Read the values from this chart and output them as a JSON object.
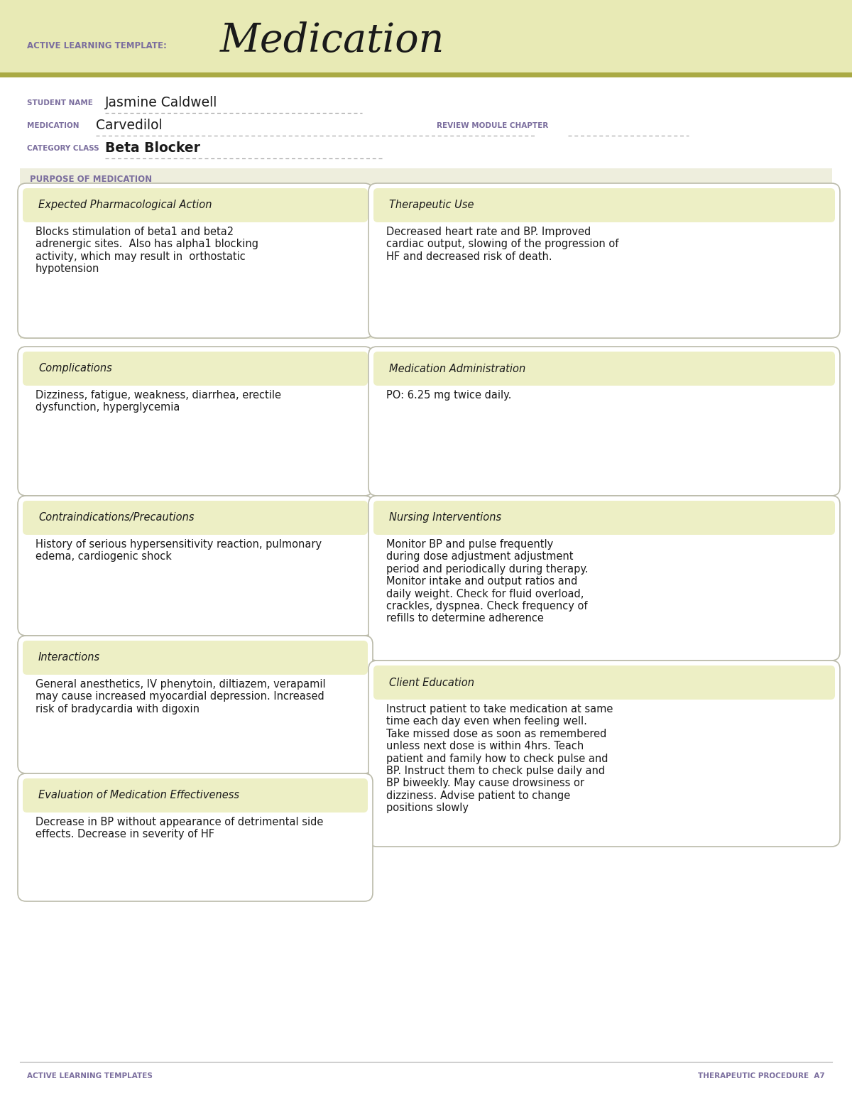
{
  "header_bg": "#E8EAB5",
  "olive_line": "#AAAA44",
  "purple": "#7B6E9E",
  "black": "#1A1A1A",
  "box_bg": "#EDEFC5",
  "box_border": "#BBBBAA",
  "white": "#FFFFFF",
  "light_gray_bg": "#EBEBD8",
  "template_label": "ACTIVE LEARNING TEMPLATE:",
  "template_title": "Medication",
  "student_name": "Jasmine Caldwell",
  "medication": "Carvedilol",
  "review_module": "REVIEW MODULE CHAPTER",
  "category_class": "Beta Blocker",
  "purpose_label": "PURPOSE OF MEDICATION",
  "sections": {
    "expected_pharm_action": {
      "title": "Expected Pharmacological Action",
      "body": "Blocks stimulation of beta1 and beta2\nadrenergic sites.  Also has alpha1 blocking\nactivity, which may result in  orthostatic\nhypotension"
    },
    "therapeutic_use": {
      "title": "Therapeutic Use",
      "body": "Decreased heart rate and BP. Improved\ncardiac output, slowing of the progression of\nHF and decreased risk of death."
    },
    "complications": {
      "title": "Complications",
      "body": "Dizziness, fatigue, weakness, diarrhea, erectile\ndysfunction, hyperglycemia"
    },
    "medication_admin": {
      "title": "Medication Administration",
      "body": "PO: 6.25 mg twice daily."
    },
    "contraindications": {
      "title": "Contraindications/Precautions",
      "body": "History of serious hypersensitivity reaction, pulmonary\nedema, cardiogenic shock"
    },
    "nursing_interventions": {
      "title": "Nursing Interventions",
      "body": "Monitor BP and pulse frequently\nduring dose adjustment adjustment\nperiod and periodically during therapy.\nMonitor intake and output ratios and\ndaily weight. Check for fluid overload,\ncrackles, dyspnea. Check frequency of\nrefills to determine adherence"
    },
    "interactions": {
      "title": "Interactions",
      "body": "General anesthetics, IV phenytoin, diltiazem, verapamil\nmay cause increased myocardial depression. Increased\nrisk of bradycardia with digoxin"
    },
    "client_education": {
      "title": "Client Education",
      "body": "Instruct patient to take medication at same\ntime each day even when feeling well.\nTake missed dose as soon as remembered\nunless next dose is within 4hrs. Teach\npatient and family how to check pulse and\nBP. Instruct them to check pulse daily and\nBP biweekly. May cause drowsiness or\ndizziness. Advise patient to change\npositions slowly"
    },
    "evaluation": {
      "title": "Evaluation of Medication Effectiveness",
      "body": "Decrease in BP without appearance of detrimental side\neffects. Decrease in severity of HF"
    }
  },
  "footer_left": "ACTIVE LEARNING TEMPLATES",
  "footer_right": "THERAPEUTIC PROCEDURE  A7"
}
